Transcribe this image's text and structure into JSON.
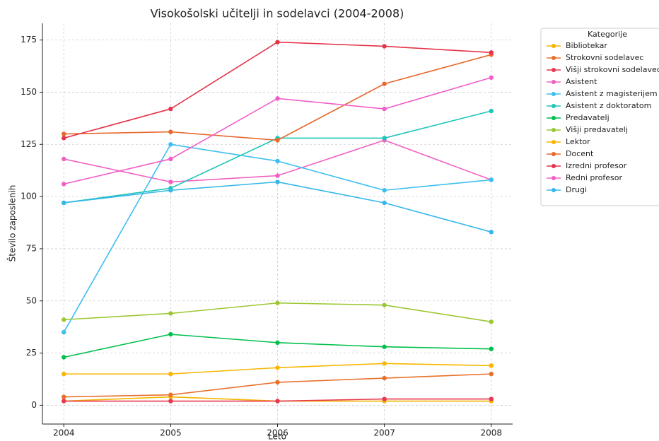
{
  "chart_data": {
    "type": "line",
    "title": "Visokošolski učitelji in sodelavci (2004-2008)",
    "x_label": "Leto",
    "y_label": "Število zaposlenih",
    "legend_title": "Kategorije",
    "legend": "outside upper right",
    "grid": true,
    "x": [
      2004,
      2005,
      2006,
      2007,
      2008
    ],
    "xlim": [
      2003.8,
      2008.2
    ],
    "xticks": [
      2004,
      2005,
      2006,
      2007,
      2008
    ],
    "ylim": [
      -9,
      183
    ],
    "yticks": [
      0,
      25,
      50,
      75,
      100,
      125,
      150,
      175
    ],
    "series": [
      {
        "name": "Bibliotekar",
        "color": "#f4b400",
        "values": [
          2,
          4,
          2,
          2,
          2
        ]
      },
      {
        "name": "Strokovni sodelavec",
        "color": "#e8702a",
        "values": [
          4,
          5,
          11,
          13,
          15
        ]
      },
      {
        "name": "Višji strokovni sodelavec",
        "color": "#e8384f",
        "values": [
          2,
          2,
          2,
          3,
          3
        ]
      },
      {
        "name": "Asistent",
        "color": "#f061c2",
        "values": [
          118,
          107,
          110,
          127,
          108
        ]
      },
      {
        "name": "Asistent z magisterijem",
        "color": "#3cbff0",
        "values": [
          35,
          125,
          117,
          103,
          108
        ]
      },
      {
        "name": "Asistent z doktoratom",
        "color": "#1dc5b8",
        "values": [
          97,
          104,
          128,
          128,
          141
        ]
      },
      {
        "name": "Predavatelj",
        "color": "#00c04b",
        "values": [
          23,
          34,
          30,
          28,
          27
        ]
      },
      {
        "name": "Višji predavatelj",
        "color": "#9bc832",
        "values": [
          41,
          44,
          49,
          48,
          40
        ]
      },
      {
        "name": "Lektor",
        "color": "#f9b600",
        "values": [
          15,
          15,
          18,
          20,
          19
        ]
      },
      {
        "name": "Docent",
        "color": "#e8682d",
        "values": [
          130,
          131,
          127,
          154,
          168
        ]
      },
      {
        "name": "Izredni profesor",
        "color": "#e53348",
        "values": [
          128,
          142,
          174,
          172,
          169
        ]
      },
      {
        "name": "Redni profesor",
        "color": "#f25dc8",
        "values": [
          106,
          118,
          147,
          142,
          157
        ]
      },
      {
        "name": "Drugi",
        "color": "#36b7ea",
        "values": [
          97,
          103,
          107,
          97,
          83
        ]
      }
    ]
  }
}
